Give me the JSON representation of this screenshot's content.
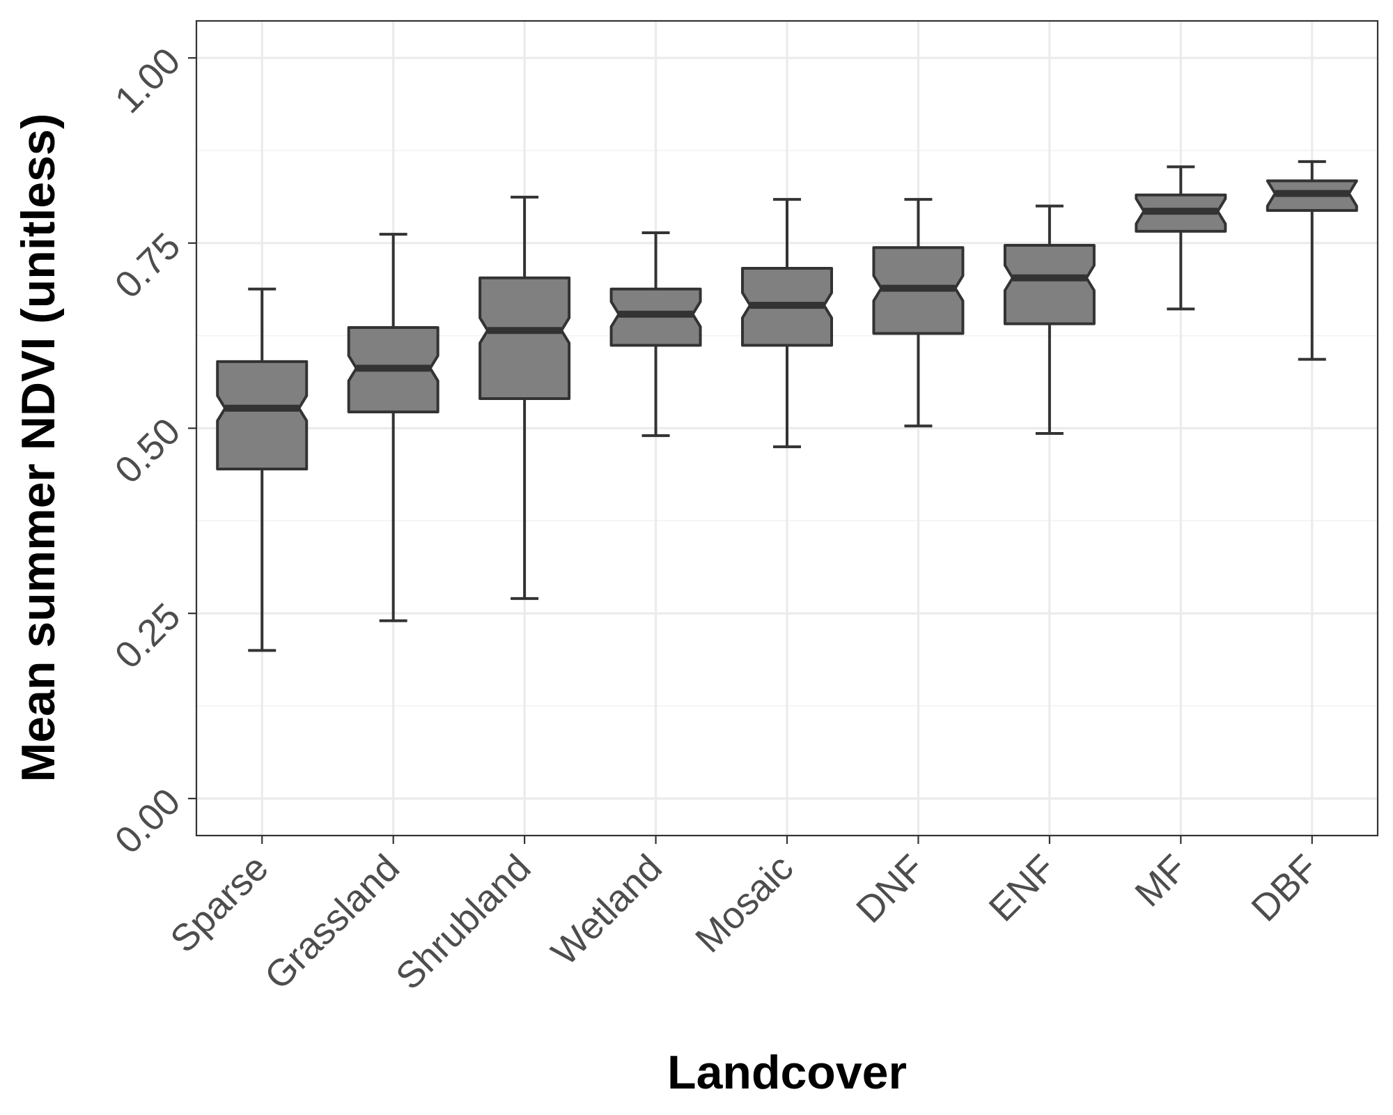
{
  "chart_data": {
    "type": "boxplot",
    "notched": true,
    "xlabel": "Landcover",
    "ylabel": "Mean summer NDVI (unitless)",
    "ylim": [
      -0.05,
      1.05
    ],
    "yticks": [
      0.0,
      0.25,
      0.5,
      0.75,
      1.0
    ],
    "ytick_labels": [
      "0.00",
      "0.25",
      "0.50",
      "0.75",
      "1.00"
    ],
    "grid": true,
    "legend": "none",
    "colors": {
      "box_fill": "#808080",
      "box_stroke": "#333333"
    },
    "categories": [
      "Sparse",
      "Grassland",
      "Shrubland",
      "Wetland",
      "Mosaic",
      "DNF",
      "ENF",
      "MF",
      "DBF"
    ],
    "boxes": [
      {
        "category": "Sparse",
        "whisker_low": 0.2,
        "q1": 0.445,
        "median": 0.527,
        "q3": 0.59,
        "whisker_high": 0.688
      },
      {
        "category": "Grassland",
        "whisker_low": 0.24,
        "q1": 0.522,
        "median": 0.581,
        "q3": 0.636,
        "whisker_high": 0.762
      },
      {
        "category": "Shrubland",
        "whisker_low": 0.27,
        "q1": 0.54,
        "median": 0.632,
        "q3": 0.703,
        "whisker_high": 0.812
      },
      {
        "category": "Wetland",
        "whisker_low": 0.49,
        "q1": 0.612,
        "median": 0.654,
        "q3": 0.688,
        "whisker_high": 0.764
      },
      {
        "category": "Mosaic",
        "whisker_low": 0.475,
        "q1": 0.612,
        "median": 0.666,
        "q3": 0.716,
        "whisker_high": 0.809
      },
      {
        "category": "DNF",
        "whisker_low": 0.503,
        "q1": 0.628,
        "median": 0.689,
        "q3": 0.744,
        "whisker_high": 0.809
      },
      {
        "category": "ENF",
        "whisker_low": 0.493,
        "q1": 0.641,
        "median": 0.703,
        "q3": 0.747,
        "whisker_high": 0.8
      },
      {
        "category": "MF",
        "whisker_low": 0.661,
        "q1": 0.766,
        "median": 0.793,
        "q3": 0.815,
        "whisker_high": 0.853
      },
      {
        "category": "DBF",
        "whisker_low": 0.593,
        "q1": 0.794,
        "median": 0.817,
        "q3": 0.834,
        "whisker_high": 0.86
      }
    ]
  }
}
